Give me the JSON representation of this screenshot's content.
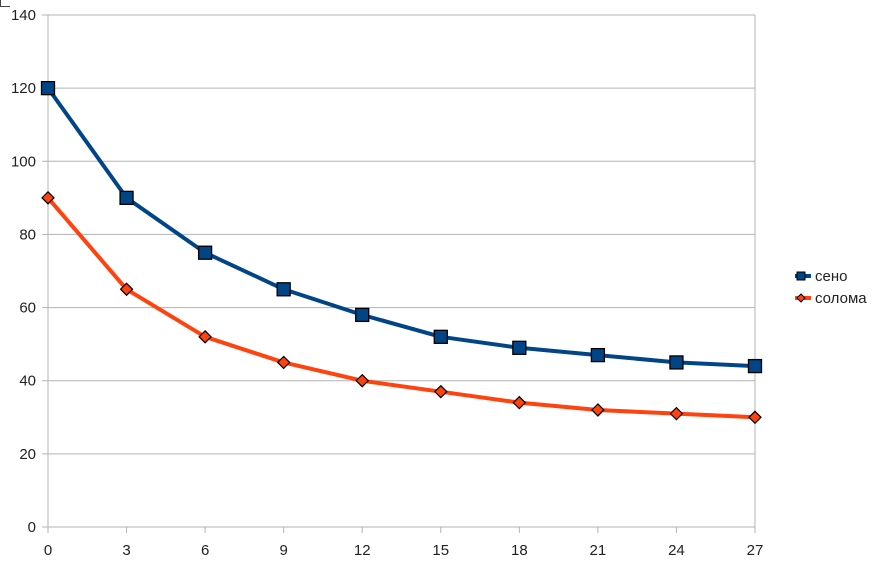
{
  "chart_data": {
    "type": "line",
    "x": [
      0,
      3,
      6,
      9,
      12,
      15,
      18,
      21,
      24,
      27
    ],
    "xticks": [
      "0",
      "3",
      "6",
      "9",
      "12",
      "15",
      "18",
      "21",
      "24",
      "27"
    ],
    "yticks": [
      "0",
      "20",
      "40",
      "60",
      "80",
      "100",
      "120",
      "140"
    ],
    "ylim": [
      0,
      140
    ],
    "grid": true,
    "legend_position": "right",
    "series": [
      {
        "name": "сено",
        "color": "#004586",
        "marker": "square",
        "values": [
          120,
          90,
          75,
          65,
          58,
          52,
          49,
          47,
          45,
          44
        ]
      },
      {
        "name": "солома",
        "color": "#ff420e",
        "marker": "diamond",
        "values": [
          90,
          65,
          52,
          45,
          40,
          37,
          34,
          32,
          31,
          30
        ]
      }
    ]
  }
}
